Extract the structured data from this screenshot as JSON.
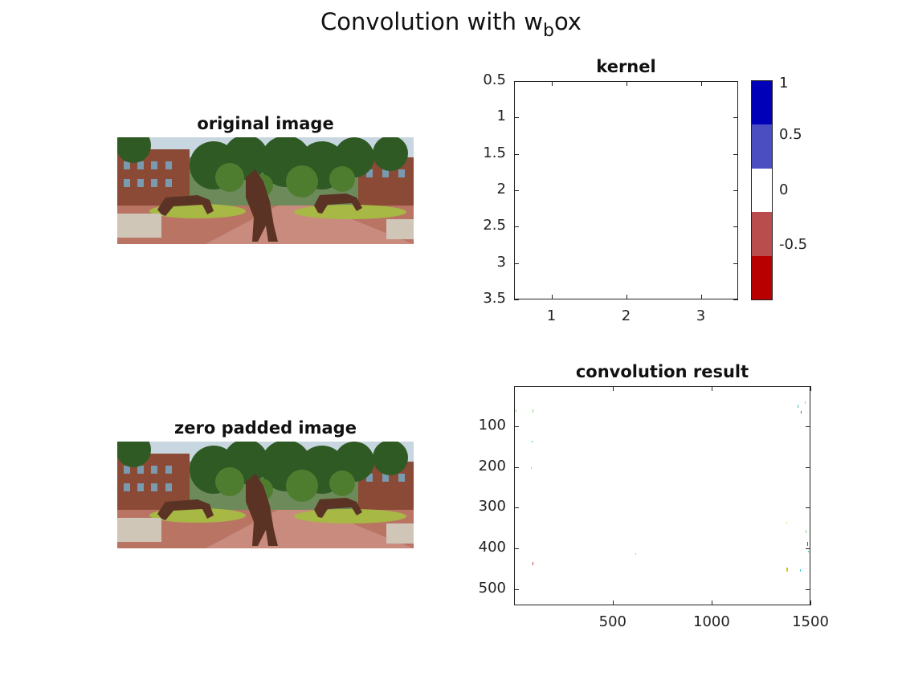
{
  "figure": {
    "title_main": "Convolution with w",
    "title_sub": "b",
    "title_tail": "ox"
  },
  "panels": {
    "original": {
      "title": "original image"
    },
    "padded": {
      "title": "zero padded image"
    }
  },
  "colors": {
    "cbar": [
      "#0000b8",
      "#4a4ec0",
      "#ffffff",
      "#b94c4c",
      "#b80000"
    ]
  },
  "chart_data": [
    {
      "type": "heatmap",
      "title": "kernel",
      "xlabel": "",
      "ylabel": "",
      "x_ticks": [
        "1",
        "2",
        "3"
      ],
      "y_ticks": [
        "0.5",
        "1",
        "1.5",
        "2",
        "2.5",
        "3",
        "3.5"
      ],
      "xlim": [
        0.5,
        3.5
      ],
      "ylim": [
        0.5,
        3.5
      ],
      "values": [
        [
          0,
          0,
          0
        ],
        [
          0,
          0,
          0
        ],
        [
          0,
          0,
          0
        ]
      ],
      "colorbar": {
        "ticks": [
          "1",
          "0.5",
          "0",
          "-0.5"
        ],
        "range": [
          -1,
          1
        ]
      }
    },
    {
      "type": "heatmap",
      "title": "convolution result",
      "xlabel": "",
      "ylabel": "",
      "x_ticks": [
        "500",
        "1000",
        "1500"
      ],
      "y_ticks": [
        "100",
        "200",
        "300",
        "400",
        "500"
      ],
      "xlim": [
        1,
        1500
      ],
      "ylim": [
        1,
        540
      ]
    }
  ]
}
